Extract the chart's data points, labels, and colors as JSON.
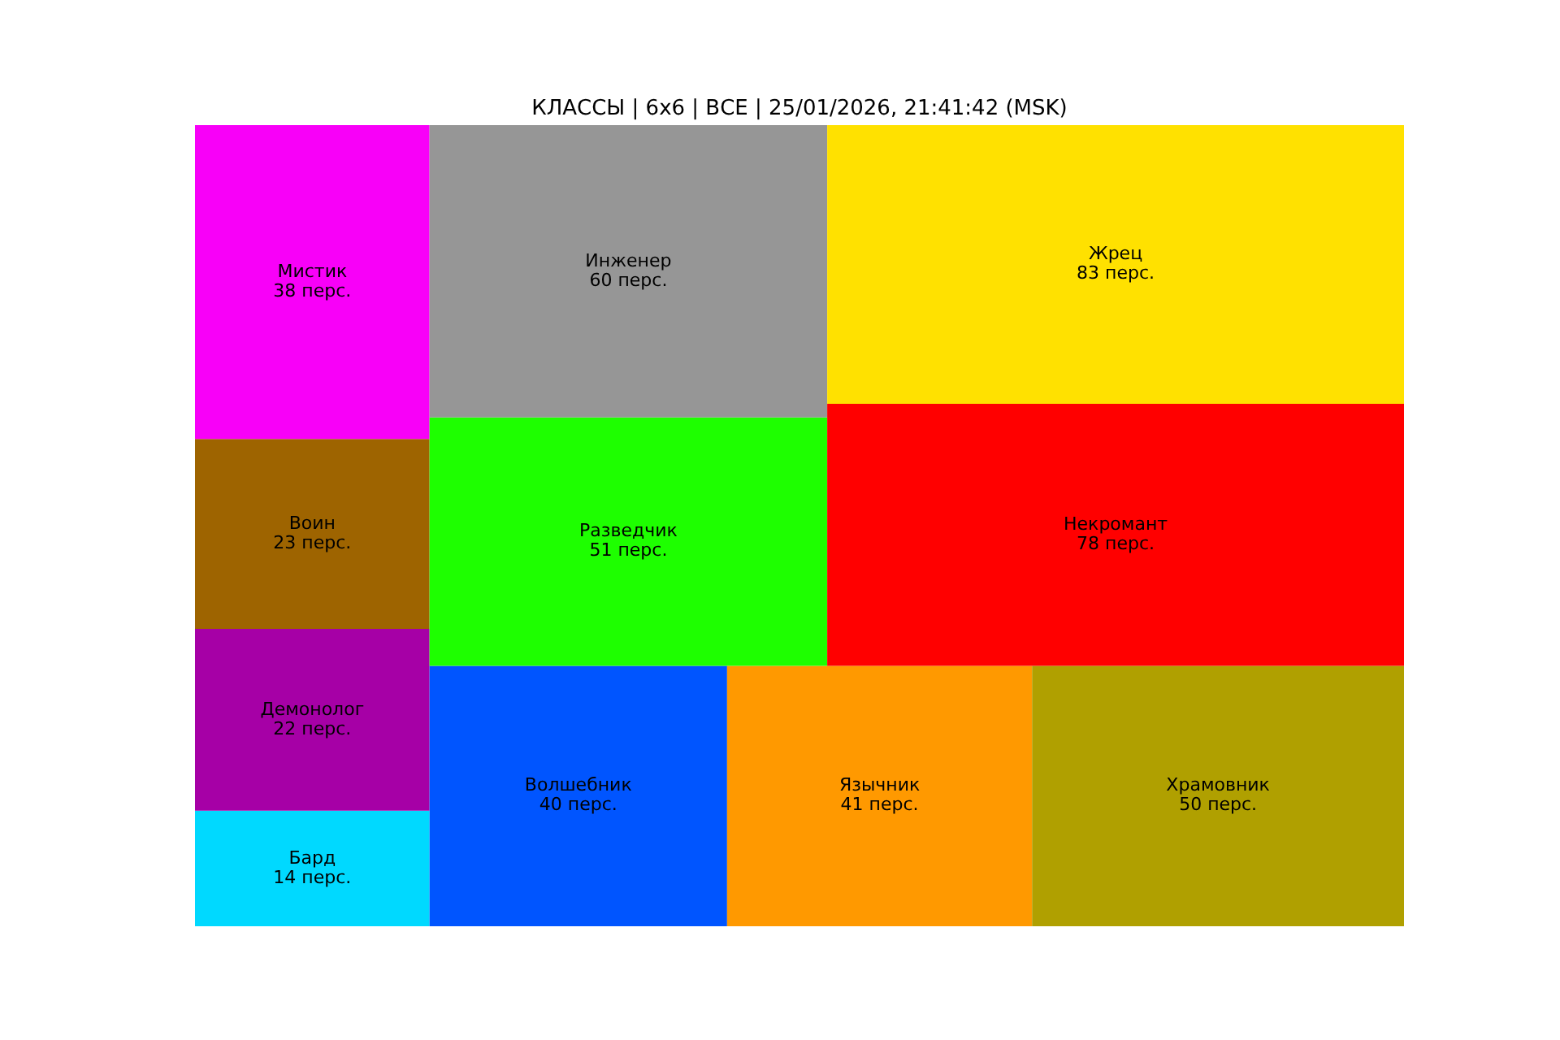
{
  "chart_data": {
    "type": "other",
    "title": "КЛАССЫ | 6x6 | ВСЕ | 25/01/2026, 21:41:42 (MSK)",
    "categories": [
      "Бард",
      "Демонолог",
      "Воин",
      "Мистик",
      "Волшебник",
      "Язычник",
      "Храмовник",
      "Разведчик",
      "Инженер",
      "Некромант",
      "Жрец"
    ],
    "values": [
      14,
      22,
      23,
      38,
      40,
      41,
      50,
      51,
      60,
      78,
      83
    ],
    "value_labels": [
      "14 перс.",
      "22 перс.",
      "23 перс.",
      "38 перс.",
      "40 перс.",
      "41 перс.",
      "50 перс.",
      "51 перс.",
      "60 перс.",
      "78 перс.",
      "83 перс."
    ],
    "colors": [
      "#00d9ff",
      "#a600a6",
      "#9e6400",
      "#f800f8",
      "#0055ff",
      "#ff9900",
      "#b0a000",
      "#1eff00",
      "#969696",
      "#ff0000",
      "#ffe100"
    ]
  }
}
